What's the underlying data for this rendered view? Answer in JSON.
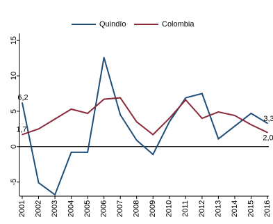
{
  "chart_data": {
    "type": "line",
    "title": "",
    "xlabel": "",
    "ylabel": "",
    "ylim": [
      -7,
      16
    ],
    "yticks": [
      15,
      10,
      5,
      0,
      -5
    ],
    "ytick_labels": [
      "15",
      "10",
      "5",
      "0",
      "-5"
    ],
    "categories": [
      "2001",
      "2002",
      "2003",
      "2004",
      "2005",
      "2006",
      "2007",
      "2008",
      "2009",
      "2010",
      "2011",
      "2012",
      "2013",
      "2014",
      "2015",
      "2016"
    ],
    "grid": false,
    "zero_line": true,
    "legend_position": "top",
    "series": [
      {
        "name": "Quindío",
        "color": "#1f4e79",
        "values": [
          6.2,
          -5.1,
          -6.8,
          -0.8,
          -0.8,
          12.6,
          4.5,
          0.9,
          -1.1,
          3.5,
          6.9,
          7.5,
          1.1,
          2.9,
          4.7,
          3.3
        ]
      },
      {
        "name": "Colombia",
        "color": "#8b2a3a",
        "values": [
          1.7,
          2.5,
          3.9,
          5.3,
          4.7,
          6.7,
          6.9,
          3.5,
          1.7,
          4.0,
          6.6,
          4.0,
          4.9,
          4.4,
          3.1,
          2.0
        ]
      }
    ],
    "annotations": [
      {
        "text": "6,2",
        "category": "2001",
        "value": 6.2
      },
      {
        "text": "1,7",
        "category": "2001",
        "value": 1.7
      },
      {
        "text": "3,3",
        "category": "2016",
        "value": 3.3
      },
      {
        "text": "2,0",
        "category": "2016",
        "value": 2.0
      }
    ]
  }
}
